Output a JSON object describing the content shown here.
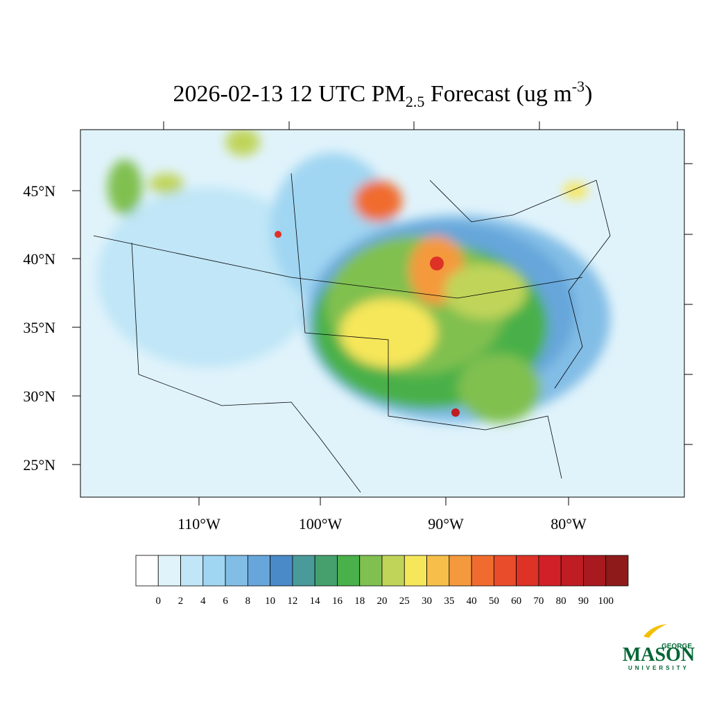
{
  "title": {
    "main": "2026-02-13 12 UTC PM",
    "sub": "2.5",
    "rest": " Forecast (ug m",
    "sup": "-3",
    "end": ")"
  },
  "lat_labels": [
    "45°N",
    "40°N",
    "35°N",
    "30°N",
    "25°N"
  ],
  "lon_labels": [
    "110°W",
    "100°W",
    "90°W",
    "80°W"
  ],
  "colorbar": {
    "levels": [
      0,
      2,
      4,
      6,
      8,
      10,
      12,
      14,
      16,
      18,
      20,
      25,
      30,
      35,
      40,
      50,
      60,
      70,
      80,
      90,
      100
    ],
    "colors": [
      "#ffffff",
      "#e0f3fb",
      "#c0e6f7",
      "#a0d6f2",
      "#82bde6",
      "#66a6da",
      "#4a8ac8",
      "#4a9a9a",
      "#45a06e",
      "#4ab04a",
      "#80c050",
      "#c0d45a",
      "#f6e65a",
      "#f7bf4a",
      "#f5993e",
      "#f06c2e",
      "#e84c2a",
      "#de3226",
      "#d22028",
      "#c01c24",
      "#a81a20",
      "#8e1a1a"
    ]
  },
  "logo": {
    "top": "GEORGE",
    "main": "MASON",
    "bottom": "UNIVERSITY"
  }
}
